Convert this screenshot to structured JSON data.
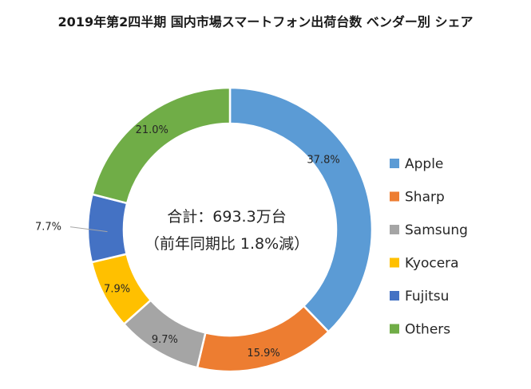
{
  "chart_data": {
    "type": "pie",
    "donut": true,
    "title": "2019年第2四半期 国内市場スマートフォン出荷台数 ベンダー別 シェア",
    "center_label": {
      "line1": "合計：693.3万台",
      "line2": "（前年同期比 1.8%減）"
    },
    "legend_placement": "right",
    "slices": [
      {
        "name": "Apple",
        "value": 37.8,
        "label": "37.8%",
        "color": "#5B9BD5"
      },
      {
        "name": "Sharp",
        "value": 15.9,
        "label": "15.9%",
        "color": "#ED7D31"
      },
      {
        "name": "Samsung",
        "value": 9.7,
        "label": "9.7%",
        "color": "#A5A5A5"
      },
      {
        "name": "Kyocera",
        "value": 7.9,
        "label": "7.9%",
        "color": "#FFC000"
      },
      {
        "name": "Fujitsu",
        "value": 7.7,
        "label": "7.7%",
        "color": "#4472C4"
      },
      {
        "name": "Others",
        "value": 21.0,
        "label": "21.0%",
        "color": "#70AD47"
      }
    ]
  }
}
